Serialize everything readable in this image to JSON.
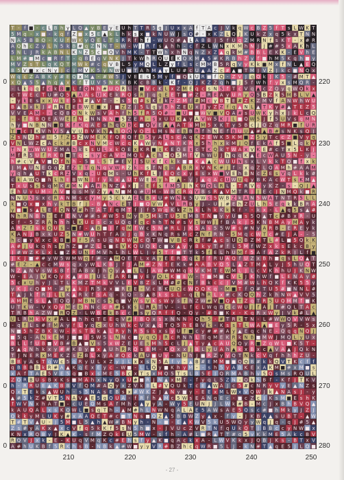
{
  "pattern": {
    "row_numbers_right": [
      "220",
      "230",
      "240",
      "250",
      "260",
      "270",
      "280"
    ],
    "row_numbers_left": [
      "0",
      "0",
      "0",
      "0",
      "0",
      "0",
      "0"
    ],
    "column_numbers": [
      "210",
      "220",
      "230",
      "240",
      "250"
    ],
    "page_number": "- 27 -",
    "symbols": [
      "B",
      "L",
      "A",
      "N",
      "K",
      "c",
      "k",
      "s",
      "T",
      "U",
      "M",
      "q",
      "5",
      "Q",
      "f",
      "R",
      "x",
      "V",
      "h",
      "W",
      "E",
      "Z",
      "y",
      "J",
      "▲",
      "■",
      "#",
      "-"
    ],
    "colors": {
      "deep_maroon": "#5b2a33",
      "wine": "#7a3442",
      "red": "#b0384a",
      "rose": "#d95c7a",
      "pink": "#e9799a",
      "mauve": "#8c5a6a",
      "plum": "#6b4152",
      "slate": "#6a6e84",
      "navy": "#3d4468",
      "khaki": "#c9b57a",
      "cream": "#e9dcae",
      "sage": "#7f8f6a",
      "olive": "#9c9362",
      "teal_grey": "#6f8a86",
      "dark": "#2a2428",
      "white": "#eeeeee",
      "blue_grey": "#8895b5"
    }
  }
}
